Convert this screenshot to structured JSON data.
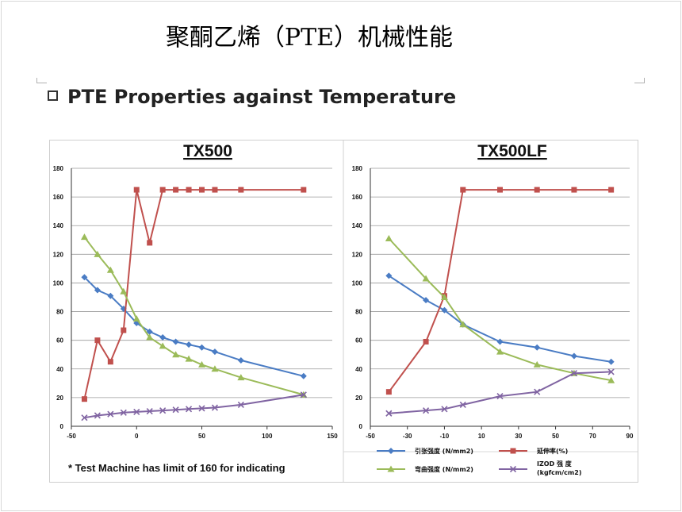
{
  "slide_title": "聚酮乙烯（PTE）机械性能",
  "subtitle": {
    "bold_prefix": "PTE",
    "rest": " Properties against Temperature"
  },
  "note": "* Test Machine has limit of 160 for indicating",
  "legend": [
    {
      "label": "引张强度 (N/mm2)",
      "color": "#4a7cc4",
      "marker": "diamond"
    },
    {
      "label": "延伸率(%)",
      "color": "#c0504d",
      "marker": "square"
    },
    {
      "label": "弯曲强度 (N/mm2)",
      "color": "#9bbb59",
      "marker": "triangle"
    },
    {
      "label": "IZOD 强 度 (kgfcm/cm2)",
      "color": "#8064a2",
      "marker": "x"
    }
  ],
  "chart_data": [
    {
      "type": "line",
      "title": "TX500",
      "xlim": [
        -50,
        150
      ],
      "xticks": [
        -50,
        0,
        50,
        100,
        150
      ],
      "ylim": [
        0,
        180
      ],
      "yticks": [
        0,
        20,
        40,
        60,
        80,
        100,
        120,
        140,
        160,
        180
      ],
      "grid": true,
      "series": [
        {
          "name": "引张强度 (N/mm2)",
          "color": "#4a7cc4",
          "marker": "diamond",
          "points": [
            [
              -40,
              104
            ],
            [
              -30,
              95
            ],
            [
              -20,
              91
            ],
            [
              -10,
              82
            ],
            [
              0,
              72
            ],
            [
              10,
              66
            ],
            [
              20,
              62
            ],
            [
              30,
              59
            ],
            [
              40,
              57
            ],
            [
              50,
              55
            ],
            [
              60,
              52
            ],
            [
              80,
              46
            ],
            [
              128,
              35
            ]
          ]
        },
        {
          "name": "延伸率(%)",
          "color": "#c0504d",
          "marker": "square",
          "points": [
            [
              -40,
              19
            ],
            [
              -30,
              60
            ],
            [
              -20,
              45
            ],
            [
              -10,
              67
            ],
            [
              0,
              165
            ],
            [
              10,
              128
            ],
            [
              20,
              165
            ],
            [
              30,
              165
            ],
            [
              40,
              165
            ],
            [
              50,
              165
            ],
            [
              60,
              165
            ],
            [
              80,
              165
            ],
            [
              128,
              165
            ]
          ]
        },
        {
          "name": "弯曲强度 (N/mm2)",
          "color": "#9bbb59",
          "marker": "triangle",
          "points": [
            [
              -40,
              132
            ],
            [
              -30,
              120
            ],
            [
              -20,
              109
            ],
            [
              -10,
              94
            ],
            [
              0,
              75
            ],
            [
              10,
              62
            ],
            [
              20,
              56
            ],
            [
              30,
              50
            ],
            [
              40,
              47
            ],
            [
              50,
              43
            ],
            [
              60,
              40
            ],
            [
              80,
              34
            ],
            [
              128,
              22
            ]
          ]
        },
        {
          "name": "IZOD 强 度 (kgfcm/cm2)",
          "color": "#8064a2",
          "marker": "x",
          "points": [
            [
              -40,
              6
            ],
            [
              -30,
              7.5
            ],
            [
              -20,
              8.5
            ],
            [
              -10,
              9.5
            ],
            [
              0,
              10
            ],
            [
              10,
              10.5
            ],
            [
              20,
              11
            ],
            [
              30,
              11.5
            ],
            [
              40,
              12
            ],
            [
              50,
              12.5
            ],
            [
              60,
              13
            ],
            [
              80,
              15
            ],
            [
              128,
              22
            ]
          ]
        }
      ]
    },
    {
      "type": "line",
      "title": "TX500LF",
      "xlim": [
        -50,
        90
      ],
      "xticks": [
        -50,
        -30,
        -10,
        10,
        30,
        50,
        70,
        90
      ],
      "ylim": [
        0,
        180
      ],
      "yticks": [
        0,
        20,
        40,
        60,
        80,
        100,
        120,
        140,
        160,
        180
      ],
      "grid": true,
      "series": [
        {
          "name": "引张强度 (N/mm2)",
          "color": "#4a7cc4",
          "marker": "diamond",
          "points": [
            [
              -40,
              105
            ],
            [
              -20,
              88
            ],
            [
              -10,
              81
            ],
            [
              0,
              71
            ],
            [
              20,
              59
            ],
            [
              40,
              55
            ],
            [
              60,
              49
            ],
            [
              80,
              45
            ]
          ]
        },
        {
          "name": "延伸率(%)",
          "color": "#c0504d",
          "marker": "square",
          "points": [
            [
              -40,
              24
            ],
            [
              -20,
              59
            ],
            [
              -10,
              91
            ],
            [
              0,
              165
            ],
            [
              20,
              165
            ],
            [
              40,
              165
            ],
            [
              60,
              165
            ],
            [
              80,
              165
            ]
          ]
        },
        {
          "name": "弯曲强度 (N/mm2)",
          "color": "#9bbb59",
          "marker": "triangle",
          "points": [
            [
              -40,
              131
            ],
            [
              -20,
              103
            ],
            [
              -10,
              90
            ],
            [
              0,
              71
            ],
            [
              20,
              52
            ],
            [
              40,
              43
            ],
            [
              60,
              37
            ],
            [
              80,
              32
            ]
          ]
        },
        {
          "name": "IZOD 强 度 (kgfcm/cm2)",
          "color": "#8064a2",
          "marker": "x",
          "points": [
            [
              -40,
              9
            ],
            [
              -20,
              11
            ],
            [
              -10,
              12
            ],
            [
              0,
              15
            ],
            [
              20,
              21
            ],
            [
              40,
              24
            ],
            [
              60,
              37
            ],
            [
              80,
              38
            ]
          ]
        }
      ]
    }
  ]
}
